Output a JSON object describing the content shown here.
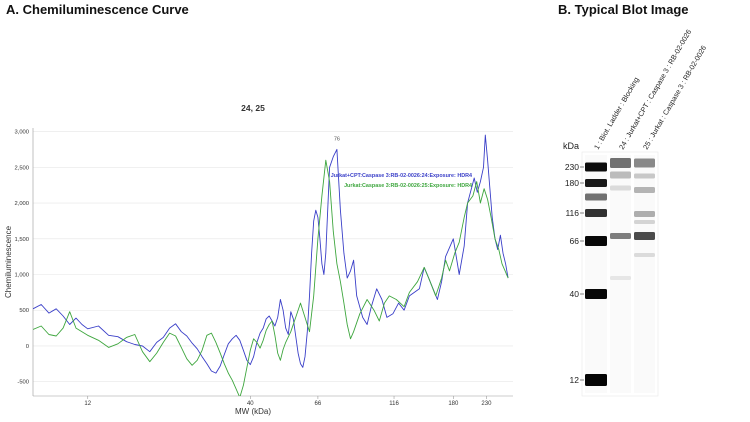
{
  "panel_a": {
    "title": "A. Chemiluminescence Curve"
  },
  "panel_b": {
    "title": "B.   Typical Blot Image"
  },
  "colors": {
    "series_blue": "#3a3fc8",
    "series_green": "#3ea63e",
    "axis": "#999999",
    "grid": "#e6e6e6",
    "text": "#333333",
    "peak_label": "#555555"
  },
  "chart_data": {
    "type": "line",
    "title": "24, 25",
    "xlabel": "MW (kDa)",
    "ylabel": "Chemiluminescence",
    "x_scale": "log",
    "xlim": [
      8,
      280
    ],
    "ylim": [
      -700,
      3050
    ],
    "x_tick_labels": [
      {
        "value": 12,
        "label": "12"
      },
      {
        "value": 40,
        "label": "40"
      },
      {
        "value": 66,
        "label": "66"
      },
      {
        "value": 116,
        "label": "116"
      },
      {
        "value": 180,
        "label": "180"
      },
      {
        "value": 230,
        "label": "230"
      }
    ],
    "y_ticks": [
      -500,
      0,
      500,
      1000,
      1500,
      2000,
      2500,
      3000
    ],
    "y_tick_labels": [
      "-500",
      "0",
      "500",
      "1,000",
      "1,500",
      "2,000",
      "2,500",
      "3,000"
    ],
    "peak_annotation": {
      "label": "76",
      "x": 76,
      "y": 2850
    },
    "legend": {
      "placement": "top-right"
    },
    "series": [
      {
        "name": "Jurkat+CPT:Caspase 3:RB-02-0026:24:Exposure: HDR4",
        "color": "#3a3fc8",
        "points": [
          [
            8.0,
            520
          ],
          [
            8.5,
            580
          ],
          [
            9.0,
            460
          ],
          [
            9.5,
            520
          ],
          [
            10.0,
            420
          ],
          [
            10.5,
            300
          ],
          [
            11.0,
            390
          ],
          [
            11.5,
            300
          ],
          [
            12.0,
            240
          ],
          [
            13.0,
            280
          ],
          [
            14.0,
            150
          ],
          [
            15.0,
            130
          ],
          [
            16.0,
            60
          ],
          [
            17.0,
            20
          ],
          [
            18.0,
            0
          ],
          [
            19.0,
            -80
          ],
          [
            20.0,
            50
          ],
          [
            21.0,
            120
          ],
          [
            22.0,
            250
          ],
          [
            23.0,
            310
          ],
          [
            24.0,
            200
          ],
          [
            25.0,
            140
          ],
          [
            26.0,
            40
          ],
          [
            27.0,
            -40
          ],
          [
            28.0,
            -150
          ],
          [
            29.0,
            -250
          ],
          [
            30.0,
            -350
          ],
          [
            31.0,
            -380
          ],
          [
            32.0,
            -280
          ],
          [
            33.0,
            -120
          ],
          [
            34.0,
            30
          ],
          [
            35.0,
            100
          ],
          [
            36.0,
            150
          ],
          [
            37.0,
            80
          ],
          [
            38.0,
            -60
          ],
          [
            39.0,
            -200
          ],
          [
            40.0,
            -260
          ],
          [
            41.0,
            -150
          ],
          [
            42.0,
            50
          ],
          [
            43.0,
            180
          ],
          [
            44.0,
            250
          ],
          [
            45.0,
            380
          ],
          [
            46.0,
            420
          ],
          [
            47.0,
            350
          ],
          [
            48.0,
            280
          ],
          [
            49.0,
            400
          ],
          [
            50.0,
            650
          ],
          [
            51.0,
            500
          ],
          [
            52.0,
            250
          ],
          [
            53.0,
            160
          ],
          [
            54.0,
            480
          ],
          [
            55.0,
            380
          ],
          [
            56.0,
            140
          ],
          [
            57.0,
            -100
          ],
          [
            58.0,
            -250
          ],
          [
            59.0,
            -300
          ],
          [
            60.0,
            -150
          ],
          [
            61.0,
            200
          ],
          [
            62.0,
            700
          ],
          [
            63.0,
            1300
          ],
          [
            64.0,
            1750
          ],
          [
            65.0,
            1900
          ],
          [
            66.0,
            1800
          ],
          [
            67.0,
            1500
          ],
          [
            68.0,
            1150
          ],
          [
            69.0,
            1000
          ],
          [
            70.0,
            1300
          ],
          [
            72.0,
            2500
          ],
          [
            74.0,
            2650
          ],
          [
            76.0,
            2750
          ],
          [
            78.0,
            1900
          ],
          [
            80.0,
            1300
          ],
          [
            82.0,
            950
          ],
          [
            84.0,
            1050
          ],
          [
            86.0,
            1200
          ],
          [
            88.0,
            700
          ],
          [
            92.0,
            400
          ],
          [
            95.0,
            300
          ],
          [
            98.0,
            550
          ],
          [
            102.0,
            800
          ],
          [
            106.0,
            650
          ],
          [
            110.0,
            400
          ],
          [
            115.0,
            450
          ],
          [
            120.0,
            600
          ],
          [
            125.0,
            500
          ],
          [
            130.0,
            700
          ],
          [
            140.0,
            800
          ],
          [
            145.0,
            1100
          ],
          [
            150.0,
            950
          ],
          [
            160.0,
            650
          ],
          [
            165.0,
            900
          ],
          [
            170.0,
            1250
          ],
          [
            180.0,
            1500
          ],
          [
            188.0,
            1000
          ],
          [
            195.0,
            1400
          ],
          [
            200.0,
            2000
          ],
          [
            210.0,
            2350
          ],
          [
            215.0,
            2150
          ],
          [
            220.0,
            2300
          ],
          [
            225.0,
            2500
          ],
          [
            228.0,
            2950
          ],
          [
            232.0,
            2600
          ],
          [
            236.0,
            2200
          ],
          [
            240.0,
            1800
          ],
          [
            245.0,
            1500
          ],
          [
            250.0,
            1350
          ],
          [
            255.0,
            1550
          ],
          [
            260.0,
            1300
          ],
          [
            265.0,
            1150
          ],
          [
            270.0,
            950
          ]
        ]
      },
      {
        "name": "Jurkat:Caspase 3:RB-02-0026:25:Exposure: HDR4",
        "color": "#3ea63e",
        "points": [
          [
            8.0,
            230
          ],
          [
            8.5,
            280
          ],
          [
            9.0,
            160
          ],
          [
            9.5,
            140
          ],
          [
            10.0,
            250
          ],
          [
            10.5,
            480
          ],
          [
            11.0,
            250
          ],
          [
            12.0,
            150
          ],
          [
            13.0,
            80
          ],
          [
            14.0,
            -20
          ],
          [
            15.0,
            30
          ],
          [
            16.0,
            120
          ],
          [
            17.0,
            160
          ],
          [
            18.0,
            -80
          ],
          [
            19.0,
            -220
          ],
          [
            20.0,
            -100
          ],
          [
            21.0,
            50
          ],
          [
            22.0,
            180
          ],
          [
            23.0,
            140
          ],
          [
            24.0,
            -20
          ],
          [
            25.0,
            -180
          ],
          [
            26.0,
            -270
          ],
          [
            27.0,
            -200
          ],
          [
            28.0,
            -60
          ],
          [
            29.0,
            150
          ],
          [
            30.0,
            180
          ],
          [
            31.0,
            50
          ],
          [
            32.0,
            -100
          ],
          [
            33.0,
            -250
          ],
          [
            34.0,
            -380
          ],
          [
            35.0,
            -480
          ],
          [
            36.0,
            -600
          ],
          [
            37.0,
            -720
          ],
          [
            38.0,
            -550
          ],
          [
            39.0,
            -300
          ],
          [
            40.0,
            -60
          ],
          [
            41.0,
            100
          ],
          [
            42.0,
            50
          ],
          [
            43.0,
            -30
          ],
          [
            44.0,
            80
          ],
          [
            45.0,
            220
          ],
          [
            46.0,
            300
          ],
          [
            47.0,
            350
          ],
          [
            48.0,
            150
          ],
          [
            49.0,
            -100
          ],
          [
            50.0,
            -200
          ],
          [
            51.0,
            -50
          ],
          [
            52.0,
            50
          ],
          [
            54.0,
            200
          ],
          [
            56.0,
            400
          ],
          [
            58.0,
            600
          ],
          [
            60.0,
            400
          ],
          [
            62.0,
            200
          ],
          [
            64.0,
            700
          ],
          [
            66.0,
            1500
          ],
          [
            68.0,
            2100
          ],
          [
            70.0,
            2600
          ],
          [
            72.0,
            2300
          ],
          [
            74.0,
            1600
          ],
          [
            76.0,
            1150
          ],
          [
            78.0,
            900
          ],
          [
            80.0,
            600
          ],
          [
            82.0,
            300
          ],
          [
            84.0,
            100
          ],
          [
            86.0,
            200
          ],
          [
            90.0,
            450
          ],
          [
            95.0,
            650
          ],
          [
            100.0,
            500
          ],
          [
            104.0,
            350
          ],
          [
            108.0,
            600
          ],
          [
            112.0,
            700
          ],
          [
            118.0,
            650
          ],
          [
            125.0,
            550
          ],
          [
            130.0,
            750
          ],
          [
            138.0,
            900
          ],
          [
            145.0,
            1100
          ],
          [
            150.0,
            950
          ],
          [
            158.0,
            700
          ],
          [
            165.0,
            950
          ],
          [
            170.0,
            1200
          ],
          [
            175.0,
            1050
          ],
          [
            182.0,
            1300
          ],
          [
            188.0,
            1450
          ],
          [
            195.0,
            1800
          ],
          [
            200.0,
            2000
          ],
          [
            208.0,
            2100
          ],
          [
            214.0,
            2300
          ],
          [
            220.0,
            2000
          ],
          [
            226.0,
            2200
          ],
          [
            232.0,
            2050
          ],
          [
            238.0,
            1800
          ],
          [
            245.0,
            1500
          ],
          [
            252.0,
            1350
          ],
          [
            258.0,
            1150
          ],
          [
            264.0,
            1050
          ],
          [
            270.0,
            950
          ]
        ]
      }
    ]
  },
  "blot": {
    "kda_header": "kDa",
    "lane_labels": [
      "1 : Biot. Ladder : Blocking",
      "24 : Jurkat+CPT : Caspase 3 : RB-02-0026",
      "25 : Jurkat : Caspase 3 : RB-02-0026"
    ],
    "markers": [
      {
        "label": "230",
        "kda": 230
      },
      {
        "label": "180",
        "kda": 180
      },
      {
        "label": "116",
        "kda": 116
      },
      {
        "label": "66",
        "kda": 66
      },
      {
        "label": "40",
        "kda": 40
      },
      {
        "label": "12",
        "kda": 12
      }
    ]
  }
}
